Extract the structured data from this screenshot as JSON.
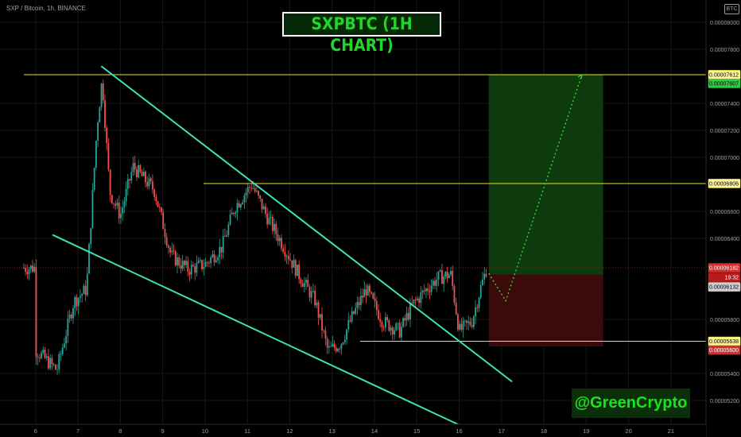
{
  "header": {
    "symbol": "SXP / Bitcoin, 1h, BINANCE",
    "banner": "SXPBTC (1H CHART)",
    "currency_badge": "BTC",
    "watermark": "@GreenCrypto"
  },
  "colors": {
    "background": "#000000",
    "up_candle": "#26a69a",
    "down_candle": "#ef5350",
    "trendline": "#3de0b6",
    "horizontal_level": "#e6e620",
    "target_zone": "#0d3b0d",
    "stop_zone": "#3b0b0b",
    "projection": "#3ddc3d"
  },
  "chart_data": {
    "type": "candlestick",
    "x_tick_labels": [
      "6",
      "7",
      "8",
      "9",
      "10",
      "11",
      "12",
      "13",
      "14",
      "15",
      "16",
      "17",
      "18",
      "19",
      "20",
      "21"
    ],
    "y_tick_labels": [
      "0.00008000",
      "0.00007800",
      "0.00007400",
      "0.00007200",
      "0.00007000",
      "0.00006600",
      "0.00006400",
      "0.00005800",
      "0.00005400",
      "0.00005200"
    ],
    "ylim": [
      5.12e-05,
      8.13e-05
    ],
    "series": [
      {
        "values": [
          {
            "x": 6.0,
            "close": 5.576e-05
          },
          {
            "x": 6.5,
            "close": 5.425e-05
          },
          {
            "x": 6.9,
            "close": 5.93e-05
          },
          {
            "x": 7.2,
            "close": 6.025e-05
          },
          {
            "x": 7.45,
            "close": 7.228e-05
          },
          {
            "x": 7.57,
            "close": 7.582e-05
          },
          {
            "x": 7.75,
            "close": 6.745e-05
          },
          {
            "x": 8.0,
            "close": 6.569e-05
          },
          {
            "x": 8.3,
            "close": 6.932e-05
          },
          {
            "x": 8.8,
            "close": 6.757e-05
          },
          {
            "x": 9.2,
            "close": 6.271e-05
          },
          {
            "x": 9.6,
            "close": 6.17e-05
          },
          {
            "x": 10.0,
            "close": 6.207e-05
          },
          {
            "x": 10.4,
            "close": 6.336e-05
          },
          {
            "x": 10.7,
            "close": 6.631e-05
          },
          {
            "x": 11.1,
            "close": 6.799e-05
          },
          {
            "x": 11.5,
            "close": 6.537e-05
          },
          {
            "x": 11.8,
            "close": 6.372e-05
          },
          {
            "x": 12.2,
            "close": 6.138e-05
          },
          {
            "x": 12.6,
            "close": 5.937e-05
          },
          {
            "x": 12.9,
            "close": 5.568e-05
          },
          {
            "x": 13.2,
            "close": 5.621e-05
          },
          {
            "x": 13.5,
            "close": 5.837e-05
          },
          {
            "x": 13.8,
            "close": 6.024e-05
          },
          {
            "x": 14.2,
            "close": 5.784e-05
          },
          {
            "x": 14.6,
            "close": 5.713e-05
          },
          {
            "x": 14.9,
            "close": 5.908e-05
          },
          {
            "x": 15.2,
            "close": 6.015e-05
          },
          {
            "x": 15.5,
            "close": 6.107e-05
          },
          {
            "x": 15.8,
            "close": 6.137e-05
          },
          {
            "x": 16.0,
            "close": 5.713e-05
          },
          {
            "x": 16.3,
            "close": 5.784e-05
          },
          {
            "x": 16.5,
            "close": 6.024e-05
          },
          {
            "x": 16.65,
            "close": 6.182e-05
          }
        ]
      }
    ],
    "horizontal_levels": [
      7.612e-05,
      6.806e-05,
      5.638e-05
    ],
    "price_labels": [
      {
        "text": "0.00007612",
        "style": "yellow"
      },
      {
        "text": "0.00007607",
        "style": "green"
      },
      {
        "text": "0.00006806",
        "style": "yellow"
      },
      {
        "text": "0.00006182",
        "style": "red"
      },
      {
        "text": "19:32",
        "style": "red-sub"
      },
      {
        "text": "0.00006132",
        "style": "gray"
      },
      {
        "text": "0.00005638",
        "style": "yellow"
      },
      {
        "text": "0.00005600",
        "style": "red"
      }
    ],
    "trendlines": [
      {
        "from": {
          "x": 7.55,
          "y": 7.675e-05
        },
        "to": {
          "x": 17.25,
          "y": 5.339e-05
        }
      },
      {
        "from": {
          "x": 6.4,
          "y": 6.426e-05
        },
        "to": {
          "x": 16.3,
          "y": 4.975e-05
        }
      }
    ],
    "target_zone": {
      "x_start": 16.7,
      "x_end": 19.4,
      "y_top": 7.612e-05,
      "y_bottom": 6.132e-05
    },
    "stop_zone": {
      "x_start": 16.7,
      "x_end": 19.4,
      "y_top": 6.132e-05,
      "y_bottom": 5.6e-05
    },
    "projection_path": [
      {
        "x": 16.7,
        "y": 6.14e-05
      },
      {
        "x": 17.1,
        "y": 5.937e-05
      },
      {
        "x": 18.9,
        "y": 7.612e-05
      }
    ]
  }
}
